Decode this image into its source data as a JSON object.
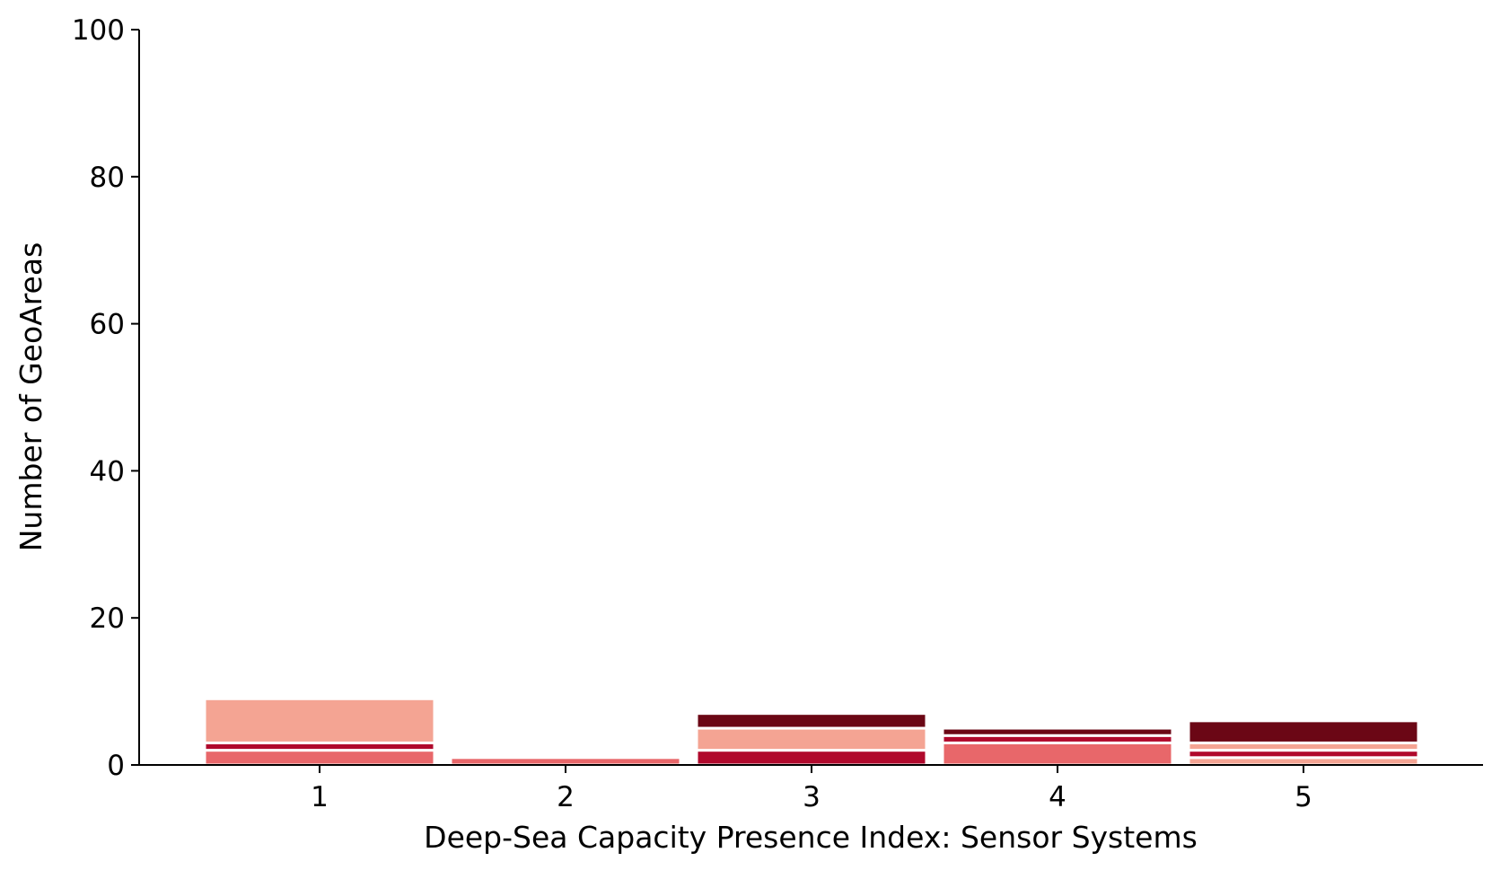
{
  "chart_data": {
    "type": "bar",
    "stacked": true,
    "title": "",
    "xlabel": "Deep-Sea Capacity Presence Index: Sensor Systems",
    "ylabel": "Number of GeoAreas",
    "categories": [
      "1",
      "2",
      "3",
      "4",
      "5"
    ],
    "ylim": [
      0,
      100
    ],
    "yticks": [
      "0",
      "20",
      "40",
      "60",
      "80",
      "100"
    ],
    "grid": false,
    "legend": "none",
    "segment_colors": [
      "#f4a493",
      "#e8676a",
      "#b0092c",
      "#6b0715"
    ],
    "stacks": [
      [
        {
          "value": 2,
          "color": "#e8676a"
        },
        {
          "value": 1,
          "color": "#b0092c"
        },
        {
          "value": 6,
          "color": "#f4a493"
        }
      ],
      [
        {
          "value": 1,
          "color": "#e8676a"
        }
      ],
      [
        {
          "value": 2,
          "color": "#b0092c"
        },
        {
          "value": 3,
          "color": "#f4a493"
        },
        {
          "value": 2,
          "color": "#6b0715"
        }
      ],
      [
        {
          "value": 3,
          "color": "#e8676a"
        },
        {
          "value": 1,
          "color": "#b0092c"
        },
        {
          "value": 1,
          "color": "#6b0715"
        }
      ],
      [
        {
          "value": 1,
          "color": "#f4a493"
        },
        {
          "value": 1,
          "color": "#b0092c"
        },
        {
          "value": 1,
          "color": "#f4a493"
        },
        {
          "value": 3,
          "color": "#6b0715"
        }
      ]
    ]
  }
}
